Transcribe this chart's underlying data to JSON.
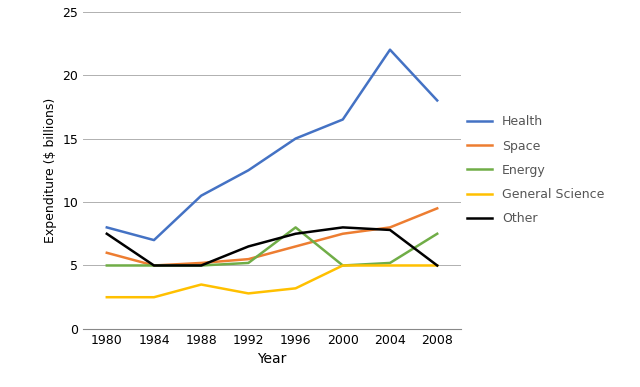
{
  "years": [
    1980,
    1984,
    1988,
    1992,
    1996,
    2000,
    2004,
    2008
  ],
  "series": {
    "Health": {
      "values": [
        8.0,
        7.0,
        10.5,
        12.5,
        15.0,
        16.5,
        22.0,
        18.0
      ],
      "color": "#4472C4"
    },
    "Space": {
      "values": [
        6.0,
        5.0,
        5.2,
        5.5,
        6.5,
        7.5,
        8.0,
        9.5
      ],
      "color": "#ED7D31"
    },
    "Energy": {
      "values": [
        5.0,
        5.0,
        5.0,
        5.2,
        8.0,
        5.0,
        5.2,
        7.5
      ],
      "color": "#70AD47"
    },
    "General Science": {
      "values": [
        2.5,
        2.5,
        3.5,
        2.8,
        3.2,
        5.0,
        5.0,
        5.0
      ],
      "color": "#FFC000"
    },
    "Other": {
      "values": [
        7.5,
        5.0,
        5.0,
        6.5,
        7.5,
        8.0,
        7.8,
        5.0
      ],
      "color": "#000000"
    }
  },
  "xlabel": "Year",
  "ylabel": "Expenditure ($ billions)",
  "ylim": [
    0,
    25
  ],
  "yticks": [
    0,
    5,
    10,
    15,
    20,
    25
  ],
  "xticks": [
    1980,
    1984,
    1988,
    1992,
    1996,
    2000,
    2004,
    2008
  ],
  "legend_order": [
    "Health",
    "Space",
    "Energy",
    "General Science",
    "Other"
  ],
  "background_color": "#ffffff",
  "grid_color": "#b0b0b0"
}
